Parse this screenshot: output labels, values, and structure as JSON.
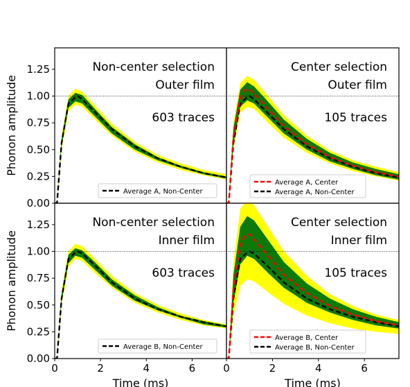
{
  "chart_data": [
    {
      "type": "line",
      "panel": "top-left",
      "annotation": [
        "Non-center selection",
        "Outer film"
      ],
      "trace_count": "603 traces",
      "ylabel": "Phonon amplitude",
      "xlabel": "",
      "xlim": [
        0,
        7.5
      ],
      "ylim": [
        0,
        1.45
      ],
      "reference_line": 1.0,
      "yticks": [
        "0.00",
        "0.25",
        "0.50",
        "0.75",
        "1.00",
        "1.25"
      ],
      "xticks": [],
      "legend_position": "lower-right",
      "bands": [
        {
          "color": "#ffff00",
          "x": [
            0.1,
            0.3,
            0.6,
            0.9,
            1.2,
            1.8,
            2.5,
            3.5,
            4.5,
            5.5,
            6.5,
            7.5
          ],
          "lower": [
            0.0,
            0.5,
            0.86,
            0.92,
            0.9,
            0.77,
            0.63,
            0.48,
            0.38,
            0.31,
            0.26,
            0.22
          ],
          "upper": [
            0.0,
            0.63,
            1.0,
            1.07,
            1.04,
            0.9,
            0.74,
            0.57,
            0.45,
            0.37,
            0.31,
            0.27
          ]
        },
        {
          "color": "#0b7a0b",
          "x": [
            0.1,
            0.3,
            0.6,
            0.9,
            1.2,
            1.8,
            2.5,
            3.5,
            4.5,
            5.5,
            6.5,
            7.5
          ],
          "lower": [
            0.0,
            0.53,
            0.89,
            0.95,
            0.93,
            0.8,
            0.65,
            0.5,
            0.4,
            0.33,
            0.27,
            0.23
          ],
          "upper": [
            0.0,
            0.6,
            0.97,
            1.03,
            1.01,
            0.87,
            0.71,
            0.55,
            0.43,
            0.35,
            0.29,
            0.25
          ]
        }
      ],
      "series": [
        {
          "name": "Average A, Non-Center",
          "color": "#000000",
          "x": [
            0.0,
            0.1,
            0.3,
            0.6,
            0.9,
            1.0,
            1.2,
            1.8,
            2.5,
            3.5,
            4.5,
            5.5,
            6.5,
            7.5
          ],
          "values": [
            0.0,
            0.0,
            0.56,
            0.93,
            0.99,
            1.0,
            0.97,
            0.84,
            0.69,
            0.53,
            0.42,
            0.34,
            0.28,
            0.24
          ]
        }
      ]
    },
    {
      "type": "line",
      "panel": "top-right",
      "annotation": [
        "Center selection",
        "Outer film"
      ],
      "trace_count": "105 traces",
      "xlabel": "",
      "xlim": [
        0,
        7.5
      ],
      "ylim": [
        0,
        1.45
      ],
      "reference_line": 1.0,
      "xticks": [],
      "legend_position": "lower-left",
      "bands": [
        {
          "color": "#ffff00",
          "x": [
            0.1,
            0.3,
            0.6,
            0.9,
            1.2,
            1.8,
            2.5,
            3.5,
            4.5,
            5.5,
            6.5,
            7.5
          ],
          "lower": [
            0.0,
            0.5,
            0.85,
            0.9,
            0.88,
            0.75,
            0.61,
            0.47,
            0.37,
            0.3,
            0.25,
            0.21
          ],
          "upper": [
            0.0,
            0.75,
            1.12,
            1.19,
            1.15,
            1.0,
            0.82,
            0.63,
            0.49,
            0.4,
            0.34,
            0.29
          ]
        },
        {
          "color": "#0b7a0b",
          "x": [
            0.1,
            0.3,
            0.6,
            0.9,
            1.2,
            1.8,
            2.5,
            3.5,
            4.5,
            5.5,
            6.5,
            7.5
          ],
          "lower": [
            0.0,
            0.55,
            0.9,
            0.96,
            0.93,
            0.8,
            0.65,
            0.5,
            0.39,
            0.32,
            0.26,
            0.22
          ],
          "upper": [
            0.0,
            0.7,
            1.06,
            1.13,
            1.09,
            0.95,
            0.78,
            0.6,
            0.47,
            0.38,
            0.32,
            0.27
          ]
        }
      ],
      "series": [
        {
          "name": "Average A, Center",
          "color": "#ff0000",
          "x": [
            0.0,
            0.1,
            0.3,
            0.6,
            0.8,
            1.0,
            1.2,
            1.8,
            2.5,
            3.5,
            4.5,
            5.5,
            6.5,
            7.5
          ],
          "values": [
            0.0,
            0.0,
            0.62,
            0.98,
            1.06,
            1.06,
            1.02,
            0.88,
            0.72,
            0.55,
            0.43,
            0.35,
            0.29,
            0.25
          ]
        },
        {
          "name": "Average A, Non-Center",
          "color": "#000000",
          "x": [
            0.0,
            0.1,
            0.3,
            0.6,
            0.9,
            1.0,
            1.2,
            1.8,
            2.5,
            3.5,
            4.5,
            5.5,
            6.5,
            7.5
          ],
          "values": [
            0.0,
            0.0,
            0.56,
            0.93,
            0.99,
            1.0,
            0.97,
            0.84,
            0.69,
            0.53,
            0.42,
            0.34,
            0.28,
            0.24
          ]
        }
      ]
    },
    {
      "type": "line",
      "panel": "bottom-left",
      "annotation": [
        "Non-center selection",
        "Inner film"
      ],
      "trace_count": "603 traces",
      "ylabel": "Phonon amplitude",
      "xlabel": "Time (ms)",
      "xlim": [
        0,
        7.5
      ],
      "ylim": [
        0,
        1.45
      ],
      "reference_line": 1.0,
      "yticks": [
        "0.00",
        "0.25",
        "0.50",
        "0.75",
        "1.00",
        "1.25"
      ],
      "xticks": [
        "0",
        "2",
        "4",
        "6"
      ],
      "legend_position": "lower-right",
      "bands": [
        {
          "color": "#ffff00",
          "x": [
            0.1,
            0.3,
            0.6,
            0.9,
            1.2,
            1.8,
            2.5,
            3.5,
            4.5,
            5.5,
            6.5,
            7.5
          ],
          "lower": [
            0.0,
            0.5,
            0.86,
            0.93,
            0.91,
            0.79,
            0.66,
            0.52,
            0.43,
            0.36,
            0.31,
            0.28
          ],
          "upper": [
            0.0,
            0.63,
            1.0,
            1.07,
            1.05,
            0.92,
            0.77,
            0.61,
            0.5,
            0.42,
            0.36,
            0.32
          ]
        },
        {
          "color": "#0b7a0b",
          "x": [
            0.1,
            0.3,
            0.6,
            0.9,
            1.2,
            1.8,
            2.5,
            3.5,
            4.5,
            5.5,
            6.5,
            7.5
          ],
          "lower": [
            0.0,
            0.53,
            0.89,
            0.96,
            0.94,
            0.82,
            0.68,
            0.54,
            0.45,
            0.38,
            0.32,
            0.29
          ],
          "upper": [
            0.0,
            0.6,
            0.97,
            1.03,
            1.01,
            0.89,
            0.74,
            0.59,
            0.48,
            0.4,
            0.35,
            0.31
          ]
        }
      ],
      "series": [
        {
          "name": "Average B, Non-Center",
          "color": "#000000",
          "x": [
            0.0,
            0.1,
            0.3,
            0.6,
            0.9,
            1.0,
            1.2,
            1.8,
            2.5,
            3.5,
            4.5,
            5.5,
            6.5,
            7.5
          ],
          "values": [
            0.0,
            0.0,
            0.56,
            0.93,
            0.99,
            1.0,
            0.98,
            0.86,
            0.71,
            0.56,
            0.46,
            0.39,
            0.34,
            0.3
          ]
        }
      ]
    },
    {
      "type": "line",
      "panel": "bottom-right",
      "annotation": [
        "Center selection",
        "Inner film"
      ],
      "trace_count": "105 traces",
      "xlabel": "Time (ms)",
      "xlim": [
        0,
        7.5
      ],
      "ylim": [
        0,
        1.45
      ],
      "reference_line": 1.0,
      "xticks": [
        "0",
        "2",
        "4",
        "6"
      ],
      "legend_position": "lower-left",
      "bands": [
        {
          "color": "#ffff00",
          "x": [
            0.1,
            0.3,
            0.6,
            0.9,
            1.2,
            1.8,
            2.5,
            3.5,
            4.5,
            5.5,
            6.5,
            7.5
          ],
          "lower": [
            0.0,
            0.4,
            0.68,
            0.74,
            0.72,
            0.62,
            0.51,
            0.4,
            0.33,
            0.28,
            0.25,
            0.23
          ],
          "upper": [
            0.0,
            0.9,
            1.4,
            1.48,
            1.43,
            1.23,
            1.0,
            0.77,
            0.6,
            0.49,
            0.41,
            0.36
          ]
        },
        {
          "color": "#0b7a0b",
          "x": [
            0.1,
            0.3,
            0.6,
            0.9,
            1.2,
            1.8,
            2.5,
            3.5,
            4.5,
            5.5,
            6.5,
            7.5
          ],
          "lower": [
            0.0,
            0.52,
            0.88,
            0.96,
            0.93,
            0.8,
            0.66,
            0.52,
            0.43,
            0.36,
            0.31,
            0.28
          ],
          "upper": [
            0.0,
            0.78,
            1.23,
            1.33,
            1.29,
            1.11,
            0.9,
            0.7,
            0.56,
            0.46,
            0.39,
            0.34
          ]
        }
      ],
      "series": [
        {
          "name": "Average B, Center",
          "color": "#ff0000",
          "x": [
            0.0,
            0.1,
            0.3,
            0.6,
            0.8,
            1.0,
            1.2,
            1.8,
            2.5,
            3.5,
            4.5,
            5.5,
            6.5,
            7.5
          ],
          "values": [
            0.0,
            0.0,
            0.65,
            1.06,
            1.15,
            1.16,
            1.11,
            0.96,
            0.78,
            0.61,
            0.49,
            0.41,
            0.35,
            0.31
          ]
        },
        {
          "name": "Average B, Non-Center",
          "color": "#000000",
          "x": [
            0.0,
            0.1,
            0.3,
            0.6,
            0.9,
            1.0,
            1.2,
            1.8,
            2.5,
            3.5,
            4.5,
            5.5,
            6.5,
            7.5
          ],
          "values": [
            0.0,
            0.0,
            0.56,
            0.93,
            0.99,
            1.0,
            0.98,
            0.86,
            0.71,
            0.56,
            0.46,
            0.39,
            0.34,
            0.3
          ]
        }
      ]
    }
  ]
}
